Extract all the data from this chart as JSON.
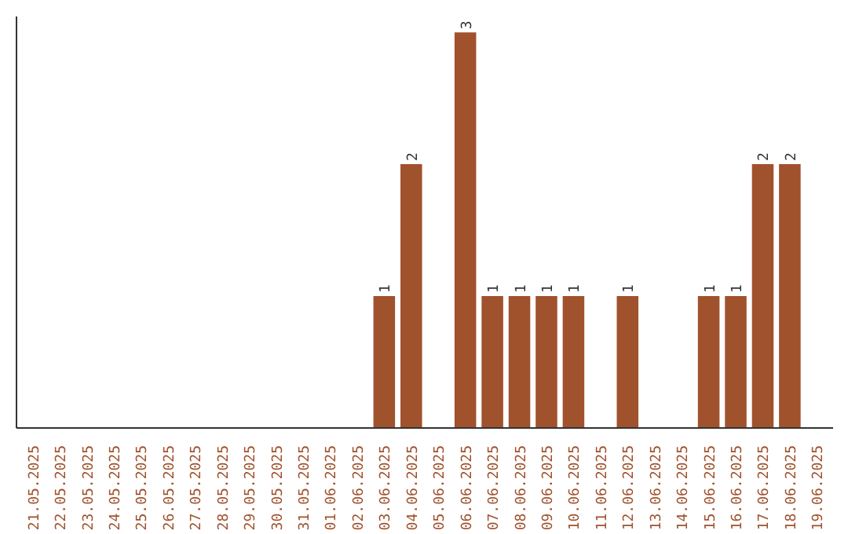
{
  "chart_data": {
    "type": "bar",
    "categories": [
      "21.05.2025",
      "22.05.2025",
      "23.05.2025",
      "24.05.2025",
      "25.05.2025",
      "26.05.2025",
      "27.05.2025",
      "28.05.2025",
      "29.05.2025",
      "30.05.2025",
      "31.05.2025",
      "01.06.2025",
      "02.06.2025",
      "03.06.2025",
      "04.06.2025",
      "05.06.2025",
      "06.06.2025",
      "07.06.2025",
      "08.06.2025",
      "09.06.2025",
      "10.06.2025",
      "11.06.2025",
      "12.06.2025",
      "13.06.2025",
      "14.06.2025",
      "15.06.2025",
      "16.06.2025",
      "17.06.2025",
      "18.06.2025",
      "19.06.2025"
    ],
    "values": [
      null,
      null,
      null,
      null,
      null,
      null,
      null,
      null,
      null,
      null,
      null,
      null,
      null,
      1,
      2,
      null,
      3,
      1,
      1,
      1,
      1,
      null,
      1,
      null,
      null,
      1,
      1,
      2,
      2,
      null
    ],
    "value_labels": [
      null,
      null,
      null,
      null,
      null,
      null,
      null,
      null,
      null,
      null,
      null,
      null,
      null,
      "1",
      "2",
      null,
      "3",
      "1",
      "1",
      "1",
      "1",
      null,
      "1",
      null,
      null,
      "1",
      "1",
      "2",
      "2",
      null
    ],
    "color": "#a0522d",
    "grid": false
  }
}
